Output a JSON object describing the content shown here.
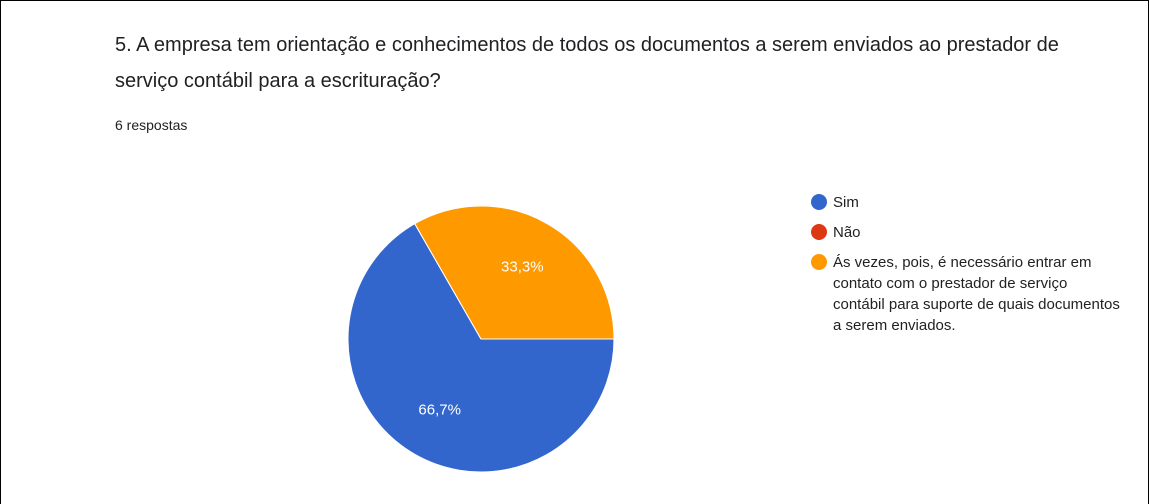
{
  "chart_data": {
    "type": "pie",
    "title": "5. A empresa tem orientação e conhecimentos de todos os documentos a serem enviados ao prestador de serviço contábil para a escrituração?",
    "subtitle": "6 respostas",
    "categories": [
      "Sim",
      "Não",
      "Ás vezes, pois, é necessário entrar em contato com o prestador de serviço contábil para suporte de quais documentos a serem enviados."
    ],
    "values": [
      66.7,
      0,
      33.3
    ],
    "value_labels": [
      "66,7%",
      null,
      "33,3%"
    ],
    "colors": [
      "#3366cc",
      "#dc3912",
      "#ff9900"
    ],
    "legend": "right"
  }
}
